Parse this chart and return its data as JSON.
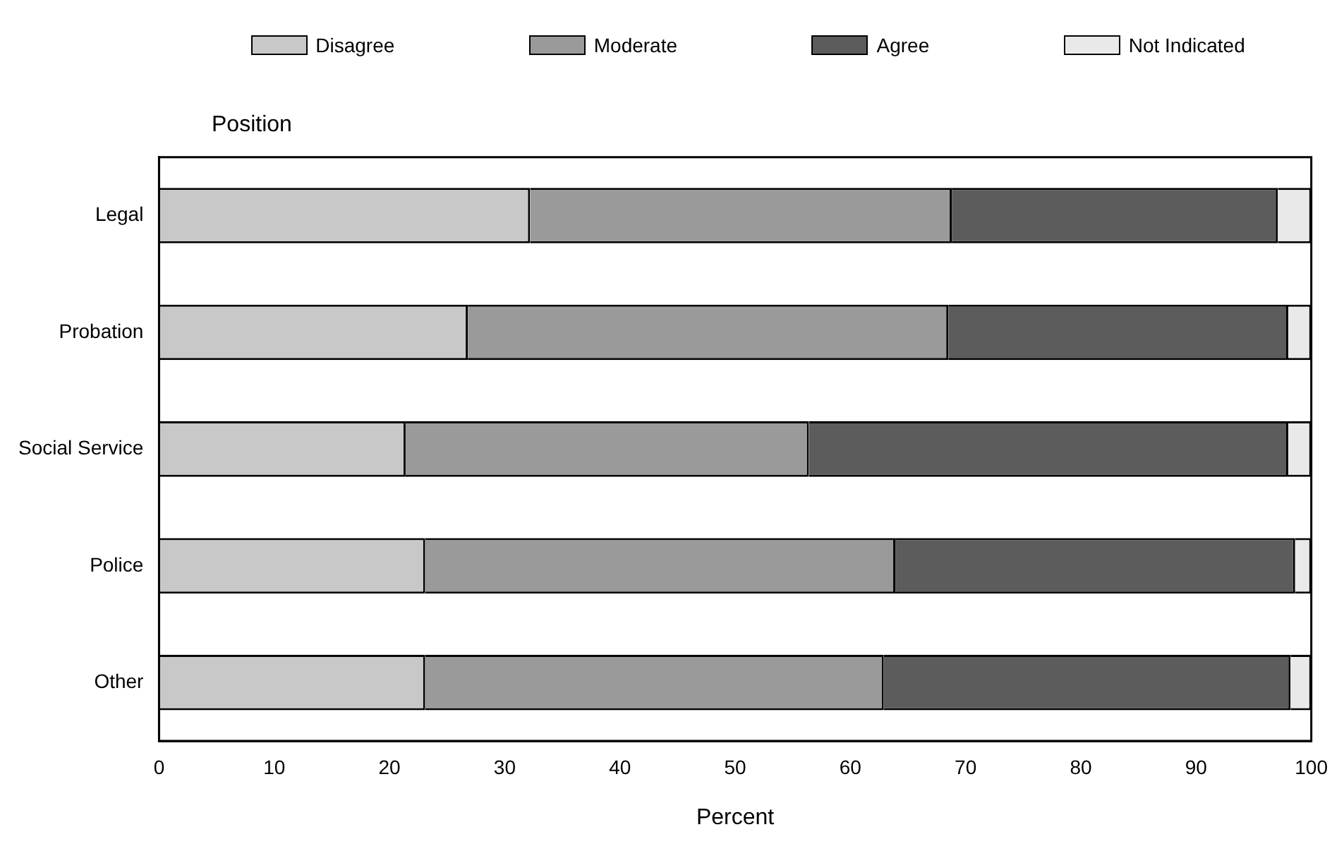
{
  "chart_data": {
    "type": "bar",
    "orientation": "horizontal",
    "stacked": true,
    "ylabel": "Position",
    "xlabel": "Percent",
    "categories": [
      "Legal",
      "Probation",
      "Social Service",
      "Police",
      "Other"
    ],
    "series": [
      {
        "name": "Disagree",
        "color": "#c8c8c8",
        "values": [
          32.2,
          26.8,
          21.4,
          23.1,
          23.1
        ]
      },
      {
        "name": "Moderate",
        "color": "#9a9a9a",
        "values": [
          36.6,
          41.7,
          35.0,
          40.8,
          39.8
        ]
      },
      {
        "name": "Agree",
        "color": "#5c5c5c",
        "values": [
          28.3,
          29.5,
          41.6,
          34.7,
          35.3
        ]
      },
      {
        "name": "Not Indicated",
        "color": "#e9e9e9",
        "values": [
          2.9,
          2.0,
          2.0,
          1.4,
          1.8
        ]
      }
    ],
    "xlim": [
      0,
      100
    ],
    "xticks": [
      0,
      10,
      20,
      30,
      40,
      50,
      60,
      70,
      80,
      90,
      100
    ],
    "grid": false,
    "legend": "top"
  }
}
